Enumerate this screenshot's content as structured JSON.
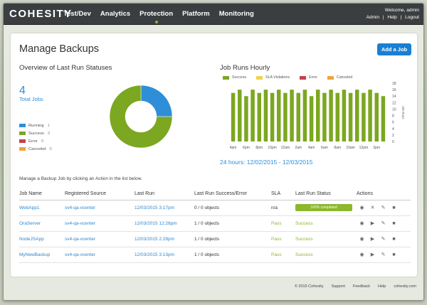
{
  "nav": {
    "logo": "COHESITY",
    "items": [
      "Test/Dev",
      "Analytics",
      "Protection",
      "Platform",
      "Monitoring"
    ],
    "active_index": 2,
    "welcome": "Welcome, admin",
    "links": [
      "Admin",
      "|",
      "Help",
      "|",
      "Logout"
    ]
  },
  "page": {
    "title": "Manage Backups",
    "add_button": "Add a Job"
  },
  "overview": {
    "title": "Overview of Last Run Statuses",
    "total": "4",
    "total_label": "Total Jobs",
    "legend": [
      {
        "label": "Running",
        "value": "1",
        "color": "#2f8ed8"
      },
      {
        "label": "Success",
        "value": "3",
        "color": "#7ca721"
      },
      {
        "label": "Error",
        "value": "0",
        "color": "#c6404f"
      },
      {
        "label": "Canceled",
        "value": "0",
        "color": "#f2a33a"
      }
    ]
  },
  "hourly": {
    "title": "Job Runs Hourly",
    "legend": [
      {
        "label": "Success",
        "color": "#7ca721"
      },
      {
        "label": "SLA Violations",
        "color": "#f0d34a"
      },
      {
        "label": "Error",
        "color": "#c6404f"
      },
      {
        "label": "Canceled",
        "color": "#f2a33a"
      }
    ],
    "range": "24 hours: 12/02/2015 - 12/03/2015"
  },
  "chart_data": [
    {
      "type": "pie",
      "categories": [
        "Running",
        "Success",
        "Error",
        "Canceled"
      ],
      "values": [
        1,
        3,
        0,
        0
      ],
      "colors": [
        "#2f8ed8",
        "#7ca721",
        "#c6404f",
        "#f2a33a"
      ]
    },
    {
      "type": "bar",
      "title": "Job Runs Hourly",
      "x_tick_labels": [
        "4pm",
        "6pm",
        "8pm",
        "10pm",
        "12am",
        "2am",
        "4am",
        "6am",
        "8am",
        "10am",
        "12pm",
        "2pm"
      ],
      "y_tick_labels": [
        "0",
        "2",
        "4",
        "6",
        "8",
        "10",
        "12",
        "14",
        "16",
        "18"
      ],
      "ylim": [
        0,
        18
      ],
      "ylabel": "Job Runs",
      "series": [
        {
          "name": "Success",
          "values": [
            15,
            16,
            14,
            16,
            15,
            16,
            15,
            16,
            15,
            16,
            15,
            16,
            14,
            16,
            15,
            16,
            15,
            16,
            15,
            16,
            15,
            16,
            15,
            14
          ]
        }
      ]
    }
  ],
  "table": {
    "instruction": "Manage a Backup Job by clicking an Action in the list below.",
    "headers": [
      "Job Name",
      "Registered Source",
      "Last Run",
      "Last Run Success/Error",
      "SLA",
      "Last Run Status",
      "Actions"
    ],
    "rows": [
      {
        "name": "WebApp1",
        "source": "sv4-qa-vcenter",
        "last_run": "12/03/2015 3:17pm",
        "counts": "0 / 0 objects",
        "sla": "n/a",
        "status": "100% completed"
      },
      {
        "name": "OraServer",
        "source": "sv4-qa-vcenter",
        "last_run": "12/03/2015 12:28pm",
        "counts": "1 / 0 objects",
        "sla": "Pass",
        "status": "Success"
      },
      {
        "name": "NodeJSApp",
        "source": "sv4-qa-vcenter",
        "last_run": "12/03/2015 2:28pm",
        "counts": "1 / 0 objects",
        "sla": "Pass",
        "status": "Success"
      },
      {
        "name": "MyNewBackup",
        "source": "sv4-qa-vcenter",
        "last_run": "12/03/2015 3:13pm",
        "counts": "1 / 0 objects",
        "sla": "Pass",
        "status": "Success"
      }
    ],
    "action_icons": [
      "eye-icon",
      "play-icon",
      "pencil-icon",
      "trash-icon"
    ],
    "row1_action_icons": [
      "eye-icon",
      "close-icon",
      "pencil-icon",
      "trash-icon"
    ]
  },
  "footer": [
    "© 2015 Cohesity",
    "Support",
    "Feedback",
    "Help",
    "cohesity.com"
  ]
}
